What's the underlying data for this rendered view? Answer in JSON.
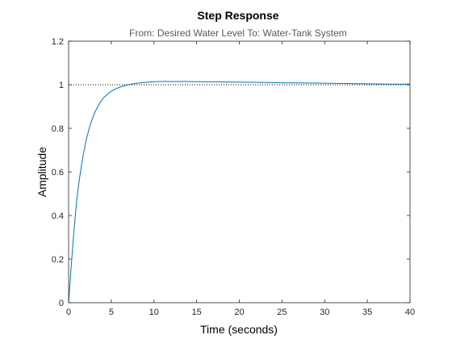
{
  "chart_data": {
    "type": "line",
    "title": "Step Response",
    "subtitle": "From: Desired  Water Level  To: Water-Tank System",
    "xlabel": "Time (seconds)",
    "ylabel": "Amplitude",
    "xlim": [
      0,
      40
    ],
    "ylim": [
      0,
      1.2
    ],
    "x_ticks": [
      0,
      5,
      10,
      15,
      20,
      25,
      30,
      35,
      40
    ],
    "y_ticks": [
      0,
      0.2,
      0.4,
      0.6,
      0.8,
      1,
      1.2
    ],
    "grid": false,
    "reference_line": {
      "y": 1,
      "style": "dotted",
      "color": "#000000"
    },
    "series": [
      {
        "color": "#0072BD",
        "x": [
          0,
          0.5,
          1,
          1.5,
          2,
          2.5,
          3,
          3.5,
          4,
          4.5,
          5,
          5.5,
          6,
          7,
          8,
          9,
          10,
          11,
          12,
          13,
          14,
          15,
          16,
          18,
          20,
          22,
          25,
          28,
          30,
          32,
          35,
          38,
          40
        ],
        "y": [
          0,
          0.268,
          0.486,
          0.628,
          0.735,
          0.811,
          0.866,
          0.906,
          0.935,
          0.955,
          0.97,
          0.981,
          0.989,
          1.0,
          1.007,
          1.011,
          1.014,
          1.015,
          1.015,
          1.015,
          1.015,
          1.014,
          1.014,
          1.013,
          1.012,
          1.011,
          1.009,
          1.008,
          1.007,
          1.006,
          1.004,
          1.003,
          1.003
        ]
      }
    ]
  }
}
